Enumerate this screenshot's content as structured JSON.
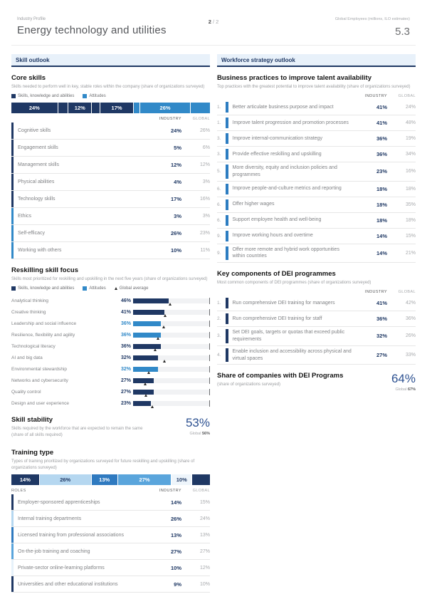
{
  "header": {
    "eyebrow": "Industry Profile",
    "title": "Energy technology and utilities",
    "page_number": "2",
    "page_separator": "/",
    "page_total": "2",
    "metric_label": "Global Employees (millions, ILO estimates)",
    "metric_value": "5.3"
  },
  "sections": {
    "left": "Skill outlook",
    "right": "Workforce strategy outlook"
  },
  "columns": {
    "industry": "INDUSTRY",
    "global": "GLOBAL",
    "roles": "ROLES"
  },
  "colors": {
    "navy": "#1f3864",
    "light_blue": "#3189c8",
    "accent_value": "#2d5191",
    "band_bg": "#e8f1fa"
  },
  "core_skills": {
    "title": "Core skills",
    "subtitle": "Skills needed to perform well in key, stable roles within the company (share of organizations surveyed)",
    "legend": [
      {
        "label": "Skills, knowledge and abilities",
        "color": "#1f3864"
      },
      {
        "label": "Attitudes",
        "color": "#3189c8"
      }
    ],
    "stacked_bar": [
      {
        "value": 24,
        "label": "24%",
        "color": "#1f3864"
      },
      {
        "value": 5,
        "label": "",
        "color": "#1f3864"
      },
      {
        "value": 12,
        "label": "12%",
        "color": "#1f3864"
      },
      {
        "value": 4,
        "label": "",
        "color": "#1f3864"
      },
      {
        "value": 17,
        "label": "17%",
        "color": "#1f3864"
      },
      {
        "value": 3,
        "label": "",
        "color": "#3189c8"
      },
      {
        "value": 26,
        "label": "26%",
        "color": "#3189c8"
      },
      {
        "value": 10,
        "label": "",
        "color": "#3189c8"
      }
    ],
    "rows": [
      {
        "label": "Cognitive skills",
        "industry": "24%",
        "global": "26%",
        "color": "#1f3864"
      },
      {
        "label": "Engagement skills",
        "industry": "5%",
        "global": "6%",
        "color": "#1f3864"
      },
      {
        "label": "Management skills",
        "industry": "12%",
        "global": "12%",
        "color": "#1f3864"
      },
      {
        "label": "Physical abilities",
        "industry": "4%",
        "global": "3%",
        "color": "#1f3864"
      },
      {
        "label": "Technology skills",
        "industry": "17%",
        "global": "16%",
        "color": "#1f3864"
      },
      {
        "label": "Ethics",
        "industry": "3%",
        "global": "3%",
        "color": "#3189c8"
      },
      {
        "label": "Self-efficacy",
        "industry": "26%",
        "global": "23%",
        "color": "#3189c8"
      },
      {
        "label": "Working with others",
        "industry": "10%",
        "global": "11%",
        "color": "#3189c8"
      }
    ]
  },
  "reskilling": {
    "title": "Reskilling skill focus",
    "subtitle": "Skills most prioritized for reskilling and upskilling in the next five years (share of organizations surveyed)",
    "legend": [
      {
        "label": "Skills, knowledge and abilities",
        "color": "#1f3864"
      },
      {
        "label": "Attitudes",
        "color": "#3189c8"
      },
      {
        "label": "Global average"
      }
    ],
    "axis_max": 100,
    "rows": [
      {
        "label": "Analytical thinking",
        "value": 46,
        "value_label": "46%",
        "global_avg": 48,
        "color": "#1f3864"
      },
      {
        "label": "Creative thinking",
        "value": 41,
        "value_label": "41%",
        "global_avg": 42,
        "color": "#1f3864"
      },
      {
        "label": "Leadership and social influence",
        "value": 36,
        "value_label": "36%",
        "global_avg": 40,
        "color": "#3189c8"
      },
      {
        "label": "Resilience, flexibility and agility",
        "value": 36,
        "value_label": "36%",
        "global_avg": 32,
        "color": "#3189c8"
      },
      {
        "label": "Technological literacy",
        "value": 36,
        "value_label": "36%",
        "global_avg": 29,
        "color": "#1f3864"
      },
      {
        "label": "AI and big data",
        "value": 32,
        "value_label": "32%",
        "global_avg": 41,
        "color": "#1f3864"
      },
      {
        "label": "Environmental stewardship",
        "value": 32,
        "value_label": "32%",
        "global_avg": 20,
        "color": "#3189c8"
      },
      {
        "label": "Networks and cybersecurity",
        "value": 27,
        "value_label": "27%",
        "global_avg": 16,
        "color": "#1f3864"
      },
      {
        "label": "Quality control",
        "value": 27,
        "value_label": "27%",
        "global_avg": 17,
        "color": "#1f3864"
      },
      {
        "label": "Design and user experience",
        "value": 23,
        "value_label": "23%",
        "global_avg": 25,
        "color": "#1f3864"
      }
    ]
  },
  "skill_stability": {
    "title": "Skill stability",
    "subtitle": "Skills required by the workforce that are expected to remain the same (share of all skills required)",
    "value": "53%",
    "global_prefix": "Global",
    "global_value": "56%"
  },
  "training_type": {
    "title": "Training type",
    "subtitle": "Types of training prioritized by organizations surveyed for future reskilling and upskilling (share of organizations surveyed)",
    "stacked_bar": [
      {
        "value": 14,
        "label": "14%",
        "color": "#1f3864",
        "text_color": "#ffffff"
      },
      {
        "value": 26,
        "label": "26%",
        "color": "#b5d7f0",
        "text_color": "#1f3864"
      },
      {
        "value": 13,
        "label": "13%",
        "color": "#2f7ac0",
        "text_color": "#ffffff"
      },
      {
        "value": 27,
        "label": "27%",
        "color": "#5aa5dc",
        "text_color": "#ffffff"
      },
      {
        "value": 10,
        "label": "10%",
        "color": "#eef5fb",
        "text_color": "#1f3864"
      },
      {
        "value": 9,
        "label": "",
        "color": "#1f3864",
        "text_color": "#ffffff"
      }
    ],
    "rows": [
      {
        "label": "Employer-sponsored apprenticeships",
        "industry": "14%",
        "global": "15%",
        "color": "#1f3864"
      },
      {
        "label": "Internal training departments",
        "industry": "26%",
        "global": "24%",
        "color": "#b5d7f0"
      },
      {
        "label": "Licensed training from professional associations",
        "industry": "13%",
        "global": "13%",
        "color": "#2f7ac0"
      },
      {
        "label": "On-the-job training and coaching",
        "industry": "27%",
        "global": "27%",
        "color": "#5aa5dc"
      },
      {
        "label": "Private-sector online-learning platforms",
        "industry": "10%",
        "global": "12%",
        "color": "#e6f1fa"
      },
      {
        "label": "Universities and other educational institutions",
        "industry": "9%",
        "global": "10%",
        "color": "#1f3864"
      }
    ]
  },
  "business_practices": {
    "title": "Business practices to improve talent availability",
    "subtitle": "Top practices with the greatest potential to improve talent availability (share of organizations surveyed)",
    "strip_color": "#2d7dc1",
    "rows": [
      {
        "rank": "1.",
        "label": "Better articulate business purpose and impact",
        "industry": "41%",
        "global": "24%"
      },
      {
        "rank": "1.",
        "label": "Improve talent progression and promotion processes",
        "industry": "41%",
        "global": "48%"
      },
      {
        "rank": "3.",
        "label": "Improve internal-communication strategy",
        "industry": "36%",
        "global": "19%"
      },
      {
        "rank": "3.",
        "label": "Provide effective reskilling and upskilling",
        "industry": "36%",
        "global": "34%"
      },
      {
        "rank": "5.",
        "label": "More diversity, equity and inclusion policies and programmes",
        "industry": "23%",
        "global": "16%"
      },
      {
        "rank": "6.",
        "label": "Improve people-and-culture metrics and reporting",
        "industry": "18%",
        "global": "18%"
      },
      {
        "rank": "6.",
        "label": "Offer higher wages",
        "industry": "18%",
        "global": "35%"
      },
      {
        "rank": "6.",
        "label": "Support employee health and well-being",
        "industry": "18%",
        "global": "18%"
      },
      {
        "rank": "9.",
        "label": "Improve working hours and overtime",
        "industry": "14%",
        "global": "15%"
      },
      {
        "rank": "9.",
        "label": "Offer more remote and hybrid work opportunities within countries",
        "industry": "14%",
        "global": "21%"
      }
    ]
  },
  "dei_components": {
    "title": "Key components of DEI programmes",
    "subtitle": "Most common components of DEI programmes (share of organizations surveyed)",
    "strip_color": "#1f3864",
    "rows": [
      {
        "rank": "1.",
        "label": "Run comprehensive DEI training for managers",
        "industry": "41%",
        "global": "42%"
      },
      {
        "rank": "2.",
        "label": "Run comprehensive DEI training for staff",
        "industry": "36%",
        "global": "36%"
      },
      {
        "rank": "3.",
        "label": "Set DEI goals, targets or quotas that exceed public requirements",
        "industry": "32%",
        "global": "26%"
      },
      {
        "rank": "4.",
        "label": "Enable inclusion and accessibility across physical and virtual spaces",
        "industry": "27%",
        "global": "33%"
      }
    ]
  },
  "dei_share": {
    "title": "Share of companies with DEI Programs",
    "subtitle": "(share of organizations surveyed)",
    "value": "64%",
    "global_prefix": "Global",
    "global_value": "67%"
  }
}
